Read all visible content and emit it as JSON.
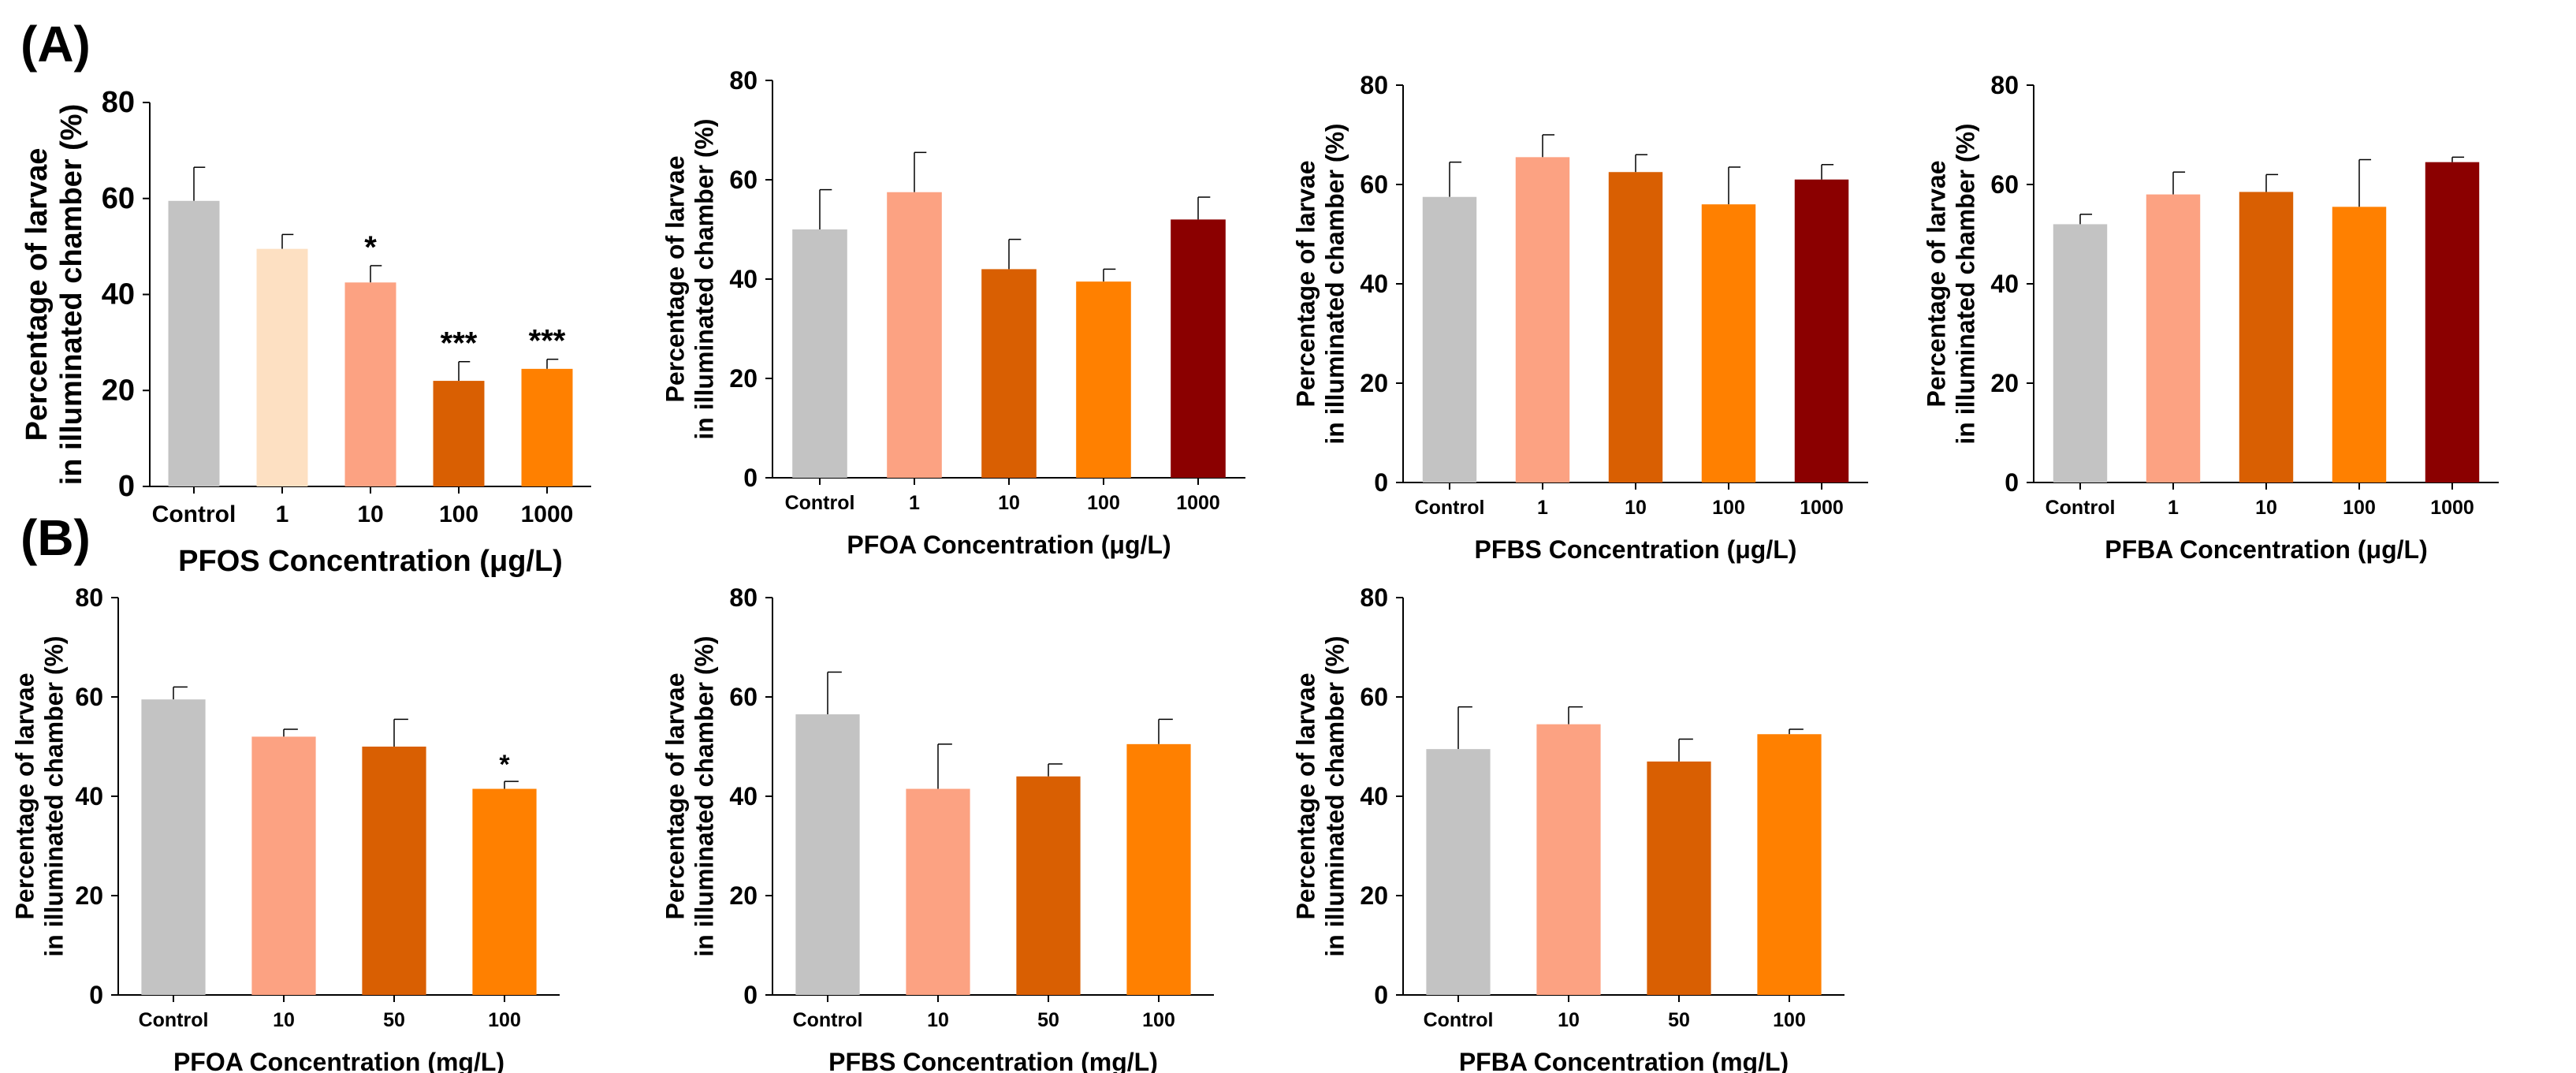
{
  "panel_labels": {
    "a": "(A)",
    "b": "(B)"
  },
  "chart_data": [
    {
      "id": "a1",
      "type": "bar",
      "title": "",
      "ylabel_line1": "Percentage of larvae",
      "ylabel_line2": "in illuminated chamber (%)",
      "xlabel": "PFOS Concentration (μg/L)",
      "ylim": [
        0,
        80
      ],
      "yticks": [
        0,
        20,
        40,
        60,
        80
      ],
      "categories": [
        "Control",
        "1",
        "10",
        "100",
        "1000"
      ],
      "values": [
        59.5,
        49.5,
        42.5,
        22.0,
        24.5
      ],
      "errors": [
        7,
        3,
        3.5,
        4,
        2
      ],
      "significance": [
        "",
        "",
        "*",
        "***",
        "***"
      ],
      "colors": [
        "#c3c3c3",
        "#fde0c2",
        "#fca282",
        "#d95f02",
        "#ff8000"
      ]
    },
    {
      "id": "a2",
      "type": "bar",
      "title": "",
      "ylabel_line1": "Percentage of larvae",
      "ylabel_line2": "in illuminated chamber (%)",
      "xlabel": "PFOA Concentration (μg/L)",
      "ylim": [
        0,
        80
      ],
      "yticks": [
        0,
        20,
        40,
        60,
        80
      ],
      "categories": [
        "Control",
        "1",
        "10",
        "100",
        "1000"
      ],
      "values": [
        50.0,
        57.5,
        42.0,
        39.5,
        52.0
      ],
      "errors": [
        8,
        8,
        6,
        2.5,
        4.5
      ],
      "significance": [
        "",
        "",
        "",
        "",
        ""
      ],
      "colors": [
        "#c3c3c3",
        "#fca282",
        "#d95f02",
        "#ff8000",
        "#8b0000"
      ]
    },
    {
      "id": "a3",
      "type": "bar",
      "title": "",
      "ylabel_line1": "Percentage of larvae",
      "ylabel_line2": "in illuminated chamber (%)",
      "xlabel": "PFBS Concentration (μg/L)",
      "ylim": [
        0,
        80
      ],
      "yticks": [
        0,
        20,
        40,
        60,
        80
      ],
      "categories": [
        "Control",
        "1",
        "10",
        "100",
        "1000"
      ],
      "values": [
        57.5,
        65.5,
        62.5,
        56.0,
        61.0
      ],
      "errors": [
        7,
        4.5,
        3.5,
        7.5,
        3
      ],
      "significance": [
        "",
        "",
        "",
        "",
        ""
      ],
      "colors": [
        "#c3c3c3",
        "#fca282",
        "#d95f02",
        "#ff8000",
        "#8b0000"
      ]
    },
    {
      "id": "a4",
      "type": "bar",
      "title": "",
      "ylabel_line1": "Percentage of larvae",
      "ylabel_line2": "in illuminated chamber (%)",
      "xlabel": "PFBA Concentration (μg/L)",
      "ylim": [
        0,
        80
      ],
      "yticks": [
        0,
        20,
        40,
        60,
        80
      ],
      "categories": [
        "Control",
        "1",
        "10",
        "100",
        "1000"
      ],
      "values": [
        52.0,
        58.0,
        58.5,
        55.5,
        64.5
      ],
      "errors": [
        2,
        4.5,
        3.5,
        9.5,
        1
      ],
      "significance": [
        "",
        "",
        "",
        "",
        ""
      ],
      "colors": [
        "#c3c3c3",
        "#fca282",
        "#d95f02",
        "#ff8000",
        "#8b0000"
      ]
    },
    {
      "id": "b1",
      "type": "bar",
      "title": "",
      "ylabel_line1": "Percentage of larvae",
      "ylabel_line2": "in illuminated chamber (%)",
      "xlabel": "PFOA Concentration (mg/L)",
      "ylim": [
        0,
        80
      ],
      "yticks": [
        0,
        20,
        40,
        60,
        80
      ],
      "categories": [
        "Control",
        "10",
        "50",
        "100"
      ],
      "values": [
        59.5,
        52.0,
        50.0,
        41.5
      ],
      "errors": [
        2.5,
        1.5,
        5.5,
        1.5
      ],
      "significance": [
        "",
        "",
        "",
        "*"
      ],
      "colors": [
        "#c3c3c3",
        "#fca282",
        "#d95f02",
        "#ff8000"
      ]
    },
    {
      "id": "b2",
      "type": "bar",
      "title": "",
      "ylabel_line1": "Percentage of larvae",
      "ylabel_line2": "in illuminated chamber (%)",
      "xlabel": "PFBS Concentration (mg/L)",
      "ylim": [
        0,
        80
      ],
      "yticks": [
        0,
        20,
        40,
        60,
        80
      ],
      "categories": [
        "Control",
        "10",
        "50",
        "100"
      ],
      "values": [
        56.5,
        41.5,
        44.0,
        50.5
      ],
      "errors": [
        8.5,
        9,
        2.5,
        5
      ],
      "significance": [
        "",
        "",
        "",
        ""
      ],
      "colors": [
        "#c3c3c3",
        "#fca282",
        "#d95f02",
        "#ff8000"
      ]
    },
    {
      "id": "b3",
      "type": "bar",
      "title": "",
      "ylabel_line1": "Percentage of larvae",
      "ylabel_line2": "in illuminated chamber (%)",
      "xlabel": "PFBA Concentration (mg/L)",
      "ylim": [
        0,
        80
      ],
      "yticks": [
        0,
        20,
        40,
        60,
        80
      ],
      "categories": [
        "Control",
        "10",
        "50",
        "100"
      ],
      "values": [
        49.5,
        54.5,
        47.0,
        52.5
      ],
      "errors": [
        8.5,
        3.5,
        4.5,
        1
      ],
      "significance": [
        "",
        "",
        "",
        ""
      ],
      "colors": [
        "#c3c3c3",
        "#fca282",
        "#d95f02",
        "#ff8000"
      ]
    }
  ]
}
